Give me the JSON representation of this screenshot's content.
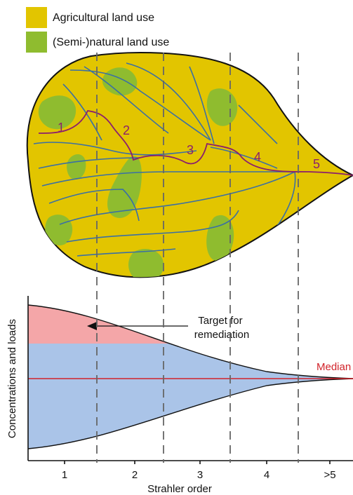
{
  "legend": {
    "agricultural": {
      "label": "Agricultural land use",
      "color": "#e2c500"
    },
    "natural": {
      "label": "(Semi-)natural land use",
      "color": "#8fbc2f"
    }
  },
  "stream_orders": [
    "1",
    "2",
    "3",
    "4",
    "5"
  ],
  "annotations": {
    "target": "Target for\nremediation",
    "median": "Median"
  },
  "axes": {
    "ylabel": "Concentrations and loads",
    "xlabel": "Strahler order",
    "xticks": [
      "1",
      "2",
      "3",
      "4",
      ">5"
    ]
  },
  "colors": {
    "river": "#3a6fa5",
    "mainstem": "#8b1f6d",
    "target_fill": "#f4a6a8",
    "range_fill": "#aac4e8",
    "median_line": "#d1232a",
    "dashed_lines": "#666666"
  }
}
